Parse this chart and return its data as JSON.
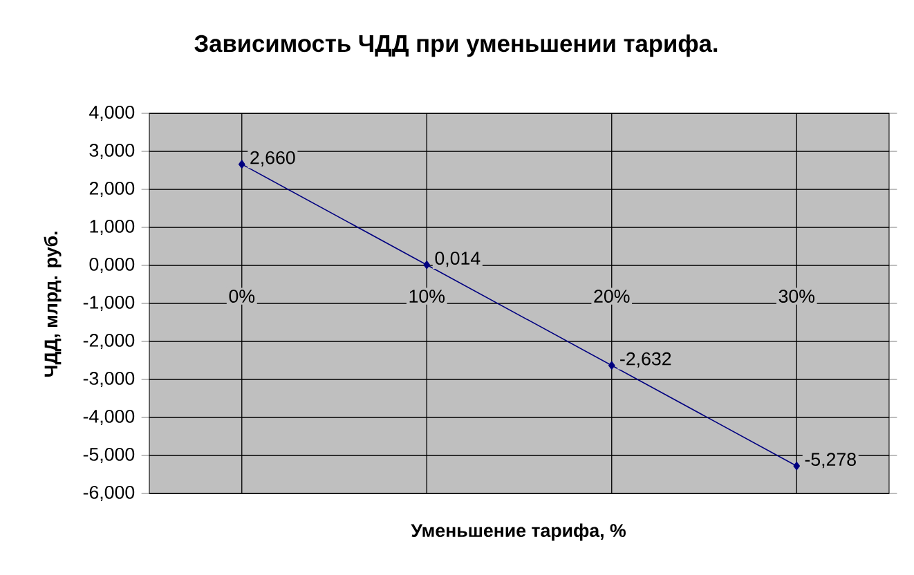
{
  "chart_data": {
    "type": "line",
    "title": "Зависимость ЧДД при уменьшении тарифа.",
    "xlabel": "Уменьшение тарифа, %",
    "ylabel": "ЧДД, млрд. руб.",
    "categories": [
      "0%",
      "10%",
      "20%",
      "30%"
    ],
    "series": [
      {
        "color": "#000080",
        "values": [
          2.66,
          0.014,
          -2.632,
          -5.278
        ],
        "value_labels": [
          "2,660",
          "0,014",
          "-2,632",
          "-5,278"
        ]
      }
    ],
    "ylim": [
      -6,
      4
    ],
    "yticks": [
      {
        "value": -6,
        "label": "-6,000"
      },
      {
        "value": -5,
        "label": "-5,000"
      },
      {
        "value": -4,
        "label": "-4,000"
      },
      {
        "value": -3,
        "label": "-3,000"
      },
      {
        "value": -2,
        "label": "-2,000"
      },
      {
        "value": -1,
        "label": "-1,000"
      },
      {
        "value": 0,
        "label": "0,000"
      },
      {
        "value": 1,
        "label": "1,000"
      },
      {
        "value": 2,
        "label": "2,000"
      },
      {
        "value": 3,
        "label": "3,000"
      },
      {
        "value": 4,
        "label": "4,000"
      }
    ],
    "grid": true,
    "marker": "diamond",
    "line_style": "solid"
  }
}
